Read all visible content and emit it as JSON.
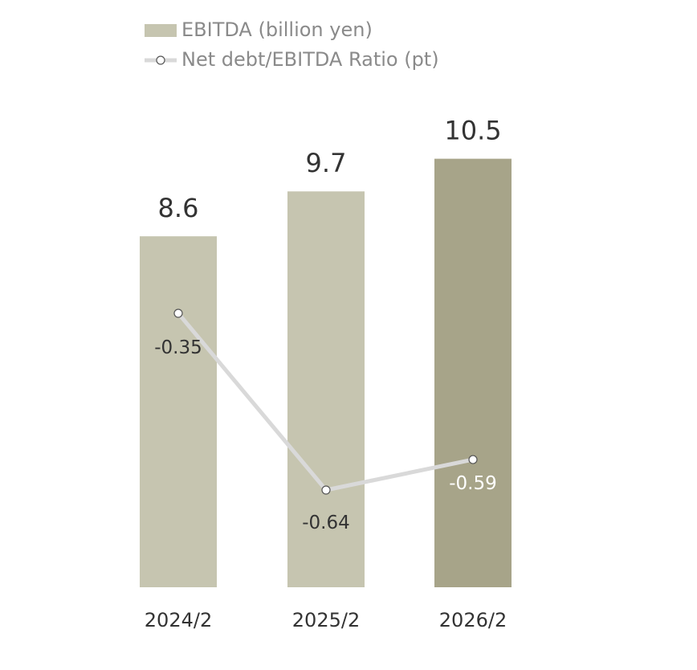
{
  "chart_data": {
    "type": "bar",
    "categories": [
      "2024/2",
      "2025/2",
      "2026/2"
    ],
    "series": [
      {
        "name": "EBITDA (billion yen)",
        "type": "bar",
        "values": [
          8.6,
          9.7,
          10.5
        ],
        "value_labels": [
          "8.6",
          "9.7",
          "10.5"
        ],
        "colors": [
          "#c6c5b0",
          "#c6c5b0",
          "#a7a489"
        ]
      },
      {
        "name": "Net debt/EBITDA Ratio (pt)",
        "type": "line",
        "values": [
          -0.35,
          -0.64,
          -0.59
        ],
        "value_labels": [
          "-0.35",
          "-0.64",
          "-0.59"
        ],
        "color": "#d9d9d9"
      }
    ],
    "legend_position": "top-left",
    "grid": false
  }
}
